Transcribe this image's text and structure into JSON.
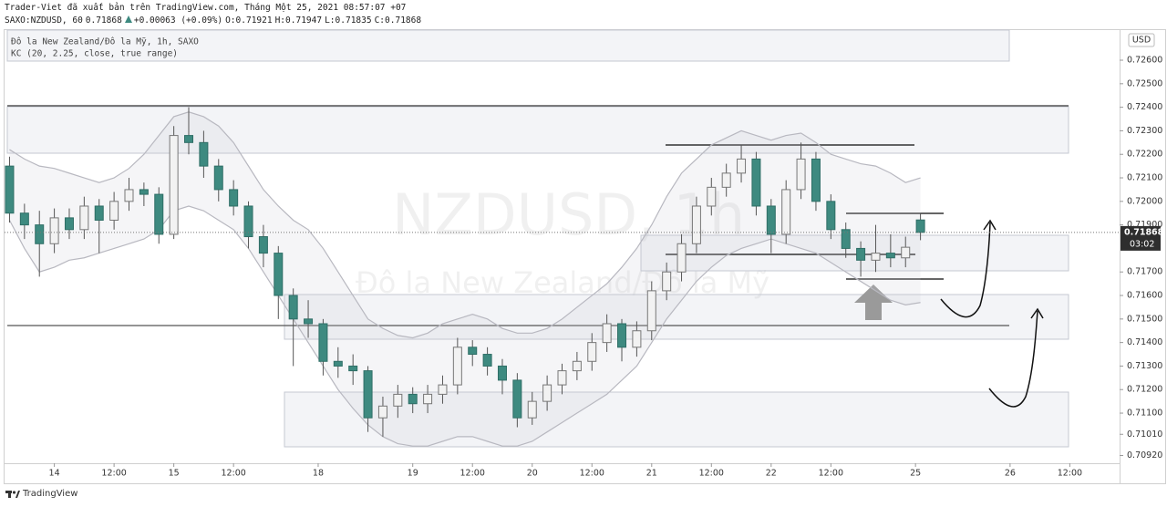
{
  "header": {
    "publisher": "Trader-Viet đã xuất bản trên TradingView.com, Tháng Một 25, 2021 08:57:07 +07",
    "symbol": "SAXO:NZDUSD, 60",
    "change": "+0.00063 (+0.09%)",
    "o_label": "O:",
    "h_label": "H:",
    "l_label": "L:",
    "c_label": "C:"
  },
  "legend": [
    "Đô la New Zealand/Đô la Mỹ, 1h, SAXO",
    "KC (20, 2.25, close, true range)"
  ],
  "watermark": {
    "symbol": "NZDUSD, 1h",
    "name": "Đô la New Zealand/Đô la Mỹ"
  },
  "price_axis": {
    "currency": "USD",
    "countdown": "03:02"
  },
  "footer": "TradingView",
  "chart_data": {
    "type": "candlestick",
    "up_color": "#f2f2f2",
    "down_color": "#3e8a80",
    "band_color": "#b8b8c0",
    "xlim": [
      -10,
      214
    ],
    "ylim": [
      0.70887,
      0.72728
    ],
    "xticks": [
      {
        "value": 0,
        "label": "14"
      },
      {
        "value": 12,
        "label": "12:00"
      },
      {
        "value": 24,
        "label": "15"
      },
      {
        "value": 36,
        "label": "12:00"
      },
      {
        "value": 53,
        "label": "18"
      },
      {
        "value": 72,
        "label": "19"
      },
      {
        "value": 84,
        "label": "12:00"
      },
      {
        "value": 96,
        "label": "20"
      },
      {
        "value": 108,
        "label": "12:00"
      },
      {
        "value": 120,
        "label": "21"
      },
      {
        "value": 132,
        "label": "12:00"
      },
      {
        "value": 144,
        "label": "22"
      },
      {
        "value": 156,
        "label": "12:00"
      },
      {
        "value": 173,
        "label": "25"
      },
      {
        "value": 192,
        "label": "26"
      },
      {
        "value": 204,
        "label": "12:00"
      }
    ],
    "yticks": [
      {
        "value": 0.726,
        "label": "0.72600"
      },
      {
        "value": 0.725,
        "label": "0.72500"
      },
      {
        "value": 0.724,
        "label": "0.72400"
      },
      {
        "value": 0.723,
        "label": "0.72300"
      },
      {
        "value": 0.722,
        "label": "0.72200"
      },
      {
        "value": 0.721,
        "label": "0.72100"
      },
      {
        "value": 0.72,
        "label": "0.72000"
      },
      {
        "value": 0.719,
        "label": "0.71900"
      },
      {
        "value": 0.717,
        "label": "0.71700"
      },
      {
        "value": 0.716,
        "label": "0.71600"
      },
      {
        "value": 0.715,
        "label": "0.71500"
      },
      {
        "value": 0.714,
        "label": "0.71400"
      },
      {
        "value": 0.713,
        "label": "0.71300"
      },
      {
        "value": 0.712,
        "label": "0.71200"
      },
      {
        "value": 0.711,
        "label": "0.71100"
      },
      {
        "value": 0.7101,
        "label": "0.71010"
      },
      {
        "value": 0.7092,
        "label": "0.70920"
      }
    ],
    "x": [
      -9,
      -6,
      -3,
      0,
      3,
      6,
      9,
      12,
      15,
      18,
      21,
      24,
      27,
      30,
      33,
      36,
      39,
      42,
      45,
      48,
      51,
      54,
      57,
      60,
      63,
      66,
      69,
      72,
      75,
      78,
      81,
      84,
      87,
      90,
      93,
      96,
      99,
      102,
      105,
      108,
      111,
      114,
      117,
      120,
      123,
      126,
      129,
      132,
      135,
      138,
      141,
      144,
      147,
      150,
      153,
      156,
      159,
      162,
      165,
      168,
      171,
      174
    ],
    "open": [
      0.7215,
      0.7195,
      0.719,
      0.7182,
      0.7193,
      0.7188,
      0.7198,
      0.7192,
      0.72,
      0.7205,
      0.7203,
      0.7186,
      0.7228,
      0.7225,
      0.7215,
      0.7205,
      0.7198,
      0.7185,
      0.7178,
      0.716,
      0.715,
      0.7148,
      0.7132,
      0.713,
      0.7128,
      0.7108,
      0.7113,
      0.7118,
      0.7114,
      0.7118,
      0.7122,
      0.7138,
      0.7135,
      0.713,
      0.7124,
      0.7108,
      0.7115,
      0.7122,
      0.7128,
      0.7132,
      0.714,
      0.7148,
      0.7138,
      0.7145,
      0.7162,
      0.717,
      0.7182,
      0.7198,
      0.7206,
      0.7212,
      0.7218,
      0.7198,
      0.7186,
      0.7205,
      0.7218,
      0.72,
      0.7188,
      0.718,
      0.7175,
      0.7178,
      0.7176,
      0.71921
    ],
    "high": [
      0.7219,
      0.7199,
      0.7196,
      0.7197,
      0.7197,
      0.7202,
      0.7201,
      0.7204,
      0.721,
      0.7208,
      0.7206,
      0.7232,
      0.724,
      0.723,
      0.7218,
      0.7209,
      0.72,
      0.719,
      0.7181,
      0.7163,
      0.7158,
      0.715,
      0.7138,
      0.7135,
      0.713,
      0.7117,
      0.7122,
      0.7121,
      0.7122,
      0.7126,
      0.7142,
      0.7141,
      0.7138,
      0.7133,
      0.7127,
      0.7119,
      0.7126,
      0.7131,
      0.7136,
      0.7144,
      0.7152,
      0.715,
      0.7149,
      0.7166,
      0.7174,
      0.7186,
      0.7202,
      0.721,
      0.7216,
      0.7224,
      0.7221,
      0.7201,
      0.7209,
      0.7225,
      0.7221,
      0.7203,
      0.7191,
      0.7183,
      0.719,
      0.7186,
      0.7185,
      0.71947
    ],
    "low": [
      0.7191,
      0.7184,
      0.7168,
      0.7178,
      0.7184,
      0.7184,
      0.7178,
      0.7188,
      0.7196,
      0.7198,
      0.7182,
      0.7184,
      0.722,
      0.721,
      0.72,
      0.7194,
      0.718,
      0.7172,
      0.715,
      0.713,
      0.7142,
      0.7126,
      0.7125,
      0.7122,
      0.7102,
      0.71,
      0.7108,
      0.711,
      0.711,
      0.7114,
      0.7118,
      0.713,
      0.7126,
      0.7118,
      0.7104,
      0.7105,
      0.7111,
      0.7118,
      0.7124,
      0.7128,
      0.7136,
      0.7132,
      0.7134,
      0.7141,
      0.7158,
      0.7166,
      0.7178,
      0.7194,
      0.7202,
      0.7208,
      0.7194,
      0.7178,
      0.7182,
      0.7201,
      0.7196,
      0.7184,
      0.7176,
      0.7168,
      0.717,
      0.7172,
      0.7172,
      0.71835
    ],
    "close": [
      0.7195,
      0.719,
      0.7182,
      0.7193,
      0.7188,
      0.7198,
      0.7192,
      0.72,
      0.7205,
      0.7203,
      0.7186,
      0.7228,
      0.7225,
      0.7215,
      0.7205,
      0.7198,
      0.7185,
      0.7178,
      0.716,
      0.715,
      0.7148,
      0.7132,
      0.713,
      0.7128,
      0.7108,
      0.7113,
      0.7118,
      0.7114,
      0.7118,
      0.7122,
      0.7138,
      0.7135,
      0.713,
      0.7124,
      0.7108,
      0.7115,
      0.7122,
      0.7128,
      0.7132,
      0.714,
      0.7148,
      0.7138,
      0.7145,
      0.7162,
      0.717,
      0.7182,
      0.7198,
      0.7206,
      0.7212,
      0.7218,
      0.7198,
      0.7186,
      0.7205,
      0.7218,
      0.72,
      0.7188,
      0.718,
      0.7175,
      0.7178,
      0.7176,
      0.71805,
      0.71868
    ],
    "kc_upper": [
      0.7222,
      0.7218,
      0.7215,
      0.7214,
      0.7212,
      0.721,
      0.7208,
      0.721,
      0.7214,
      0.722,
      0.7228,
      0.7236,
      0.7238,
      0.7236,
      0.7232,
      0.7225,
      0.7215,
      0.7205,
      0.7198,
      0.7192,
      0.7188,
      0.718,
      0.717,
      0.716,
      0.715,
      0.7146,
      0.7143,
      0.7142,
      0.7144,
      0.7148,
      0.715,
      0.7152,
      0.715,
      0.7146,
      0.7144,
      0.7144,
      0.7146,
      0.715,
      0.7155,
      0.716,
      0.7165,
      0.7172,
      0.718,
      0.719,
      0.7202,
      0.7212,
      0.7218,
      0.7224,
      0.7227,
      0.723,
      0.7228,
      0.7226,
      0.7228,
      0.7229,
      0.7225,
      0.722,
      0.7218,
      0.7216,
      0.7215,
      0.7212,
      0.7208,
      0.721
    ],
    "kc_lower": [
      0.7192,
      0.718,
      0.717,
      0.7172,
      0.7175,
      0.7176,
      0.7178,
      0.718,
      0.7182,
      0.7184,
      0.7188,
      0.7196,
      0.7198,
      0.7196,
      0.7192,
      0.7188,
      0.718,
      0.717,
      0.716,
      0.715,
      0.714,
      0.713,
      0.712,
      0.7112,
      0.7105,
      0.71,
      0.7097,
      0.7096,
      0.7096,
      0.7098,
      0.71,
      0.71,
      0.7098,
      0.7096,
      0.7096,
      0.7098,
      0.7102,
      0.7106,
      0.711,
      0.7114,
      0.7118,
      0.7124,
      0.713,
      0.714,
      0.715,
      0.7158,
      0.7166,
      0.7172,
      0.7177,
      0.718,
      0.7182,
      0.7184,
      0.7182,
      0.718,
      0.7178,
      0.7174,
      0.717,
      0.7166,
      0.7162,
      0.7158,
      0.7156,
      0.7157
    ]
  }
}
